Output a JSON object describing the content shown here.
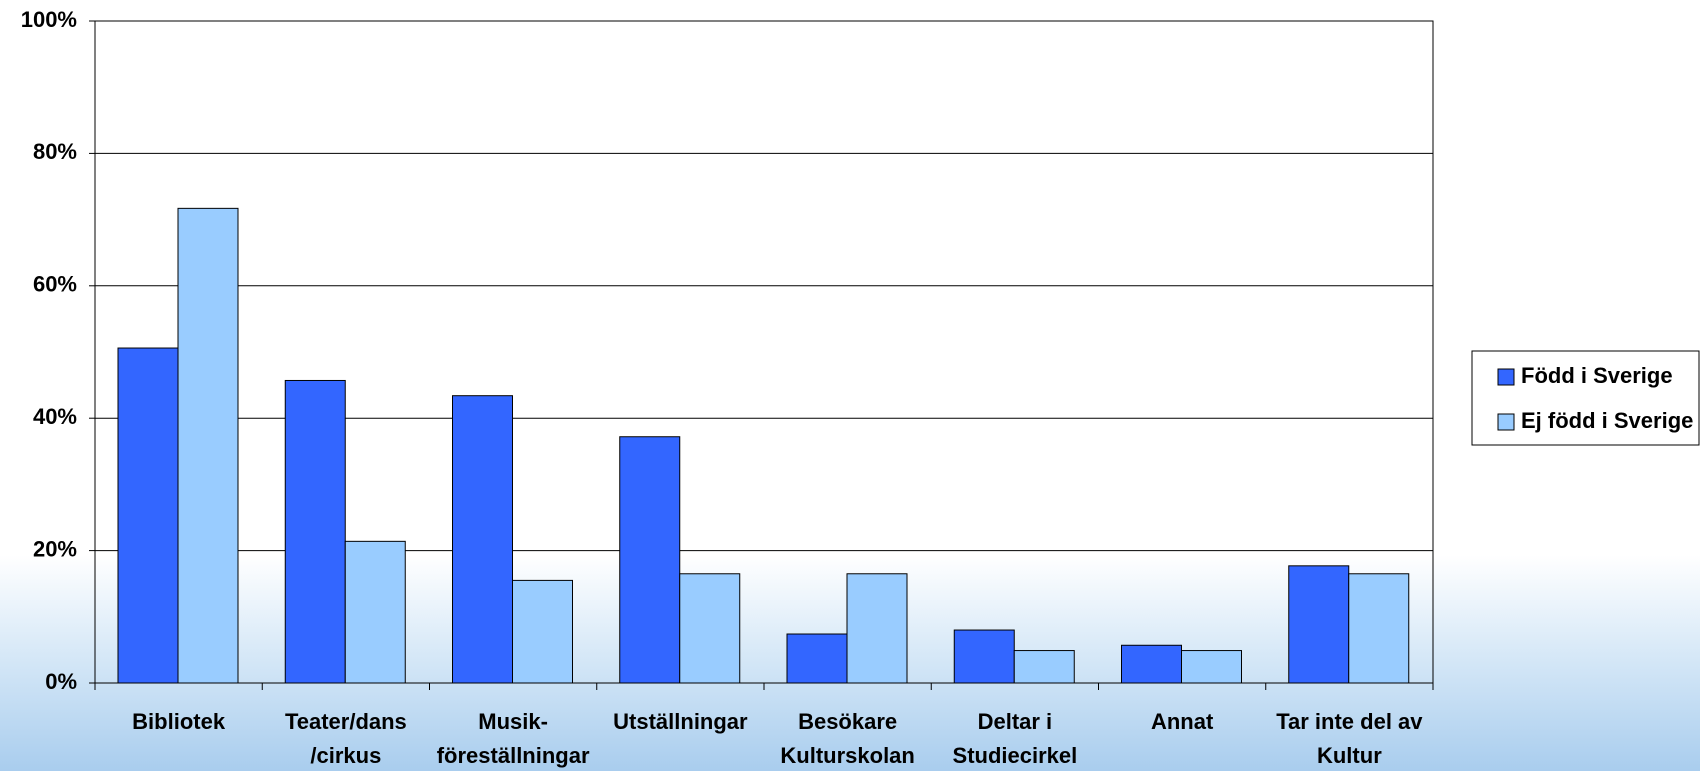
{
  "chart_data": {
    "type": "bar",
    "categories": [
      [
        "Bibliotek"
      ],
      [
        "Teater/dans",
        "/cirkus"
      ],
      [
        "Musik-",
        "föreställningar"
      ],
      [
        "Utställningar"
      ],
      [
        "Besökare",
        "Kulturskolan"
      ],
      [
        "Deltar i",
        "Studiecirkel"
      ],
      [
        "Annat"
      ],
      [
        "Tar inte del av",
        "Kultur"
      ]
    ],
    "series": [
      {
        "name": "Född i Sverige",
        "color": "#3366ff",
        "values": [
          50.6,
          45.7,
          43.4,
          37.2,
          7.4,
          8.0,
          5.7,
          17.7
        ]
      },
      {
        "name": "Ej född i Sverige",
        "color": "#99ccff",
        "values": [
          71.7,
          21.4,
          15.5,
          16.5,
          16.5,
          4.9,
          4.9,
          16.5
        ]
      }
    ],
    "ylim": [
      0,
      100
    ],
    "yticks": [
      {
        "value": 0,
        "label": "0%"
      },
      {
        "value": 20,
        "label": "20%"
      },
      {
        "value": 40,
        "label": "40%"
      },
      {
        "value": 60,
        "label": "60%"
      },
      {
        "value": 80,
        "label": "80%"
      },
      {
        "value": 100,
        "label": "100%"
      }
    ],
    "grid": true,
    "legend": "right"
  }
}
